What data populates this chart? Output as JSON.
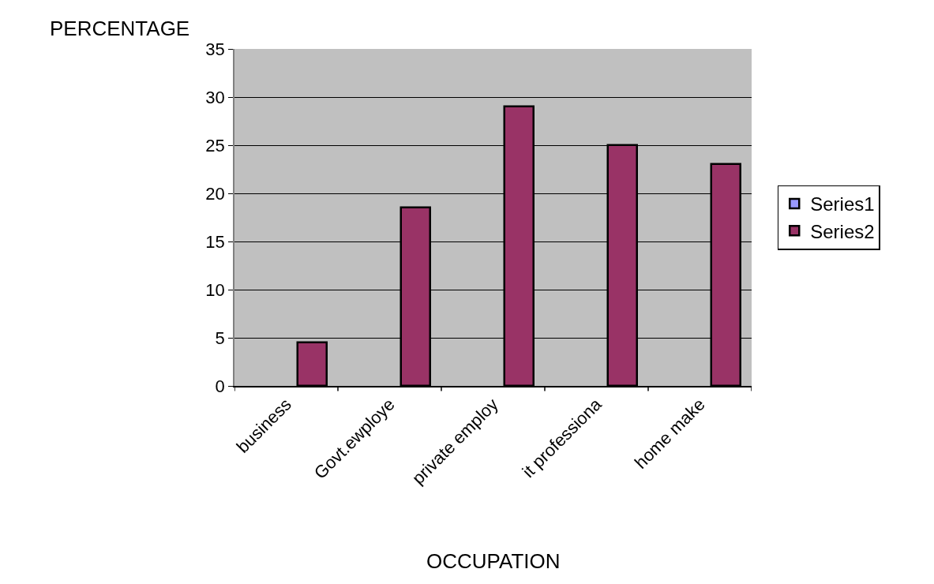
{
  "chart_data": {
    "type": "bar",
    "xlabel": "OCCUPATION",
    "ylabel": "PERCENTAGE",
    "categories": [
      "business",
      "Govt.ewploye",
      "private employ",
      "it professiona",
      "home make"
    ],
    "series": [
      {
        "name": "Series1",
        "color": "#9999ff",
        "values": [
          null,
          null,
          null,
          null,
          null
        ]
      },
      {
        "name": "Series2",
        "color": "#993366",
        "values": [
          4.5,
          18.5,
          29,
          25,
          23
        ]
      }
    ],
    "ylim": [
      0,
      35
    ],
    "yticks": [
      0,
      5,
      10,
      15,
      20,
      25,
      30,
      35
    ],
    "grid": "y",
    "legend": "right"
  }
}
